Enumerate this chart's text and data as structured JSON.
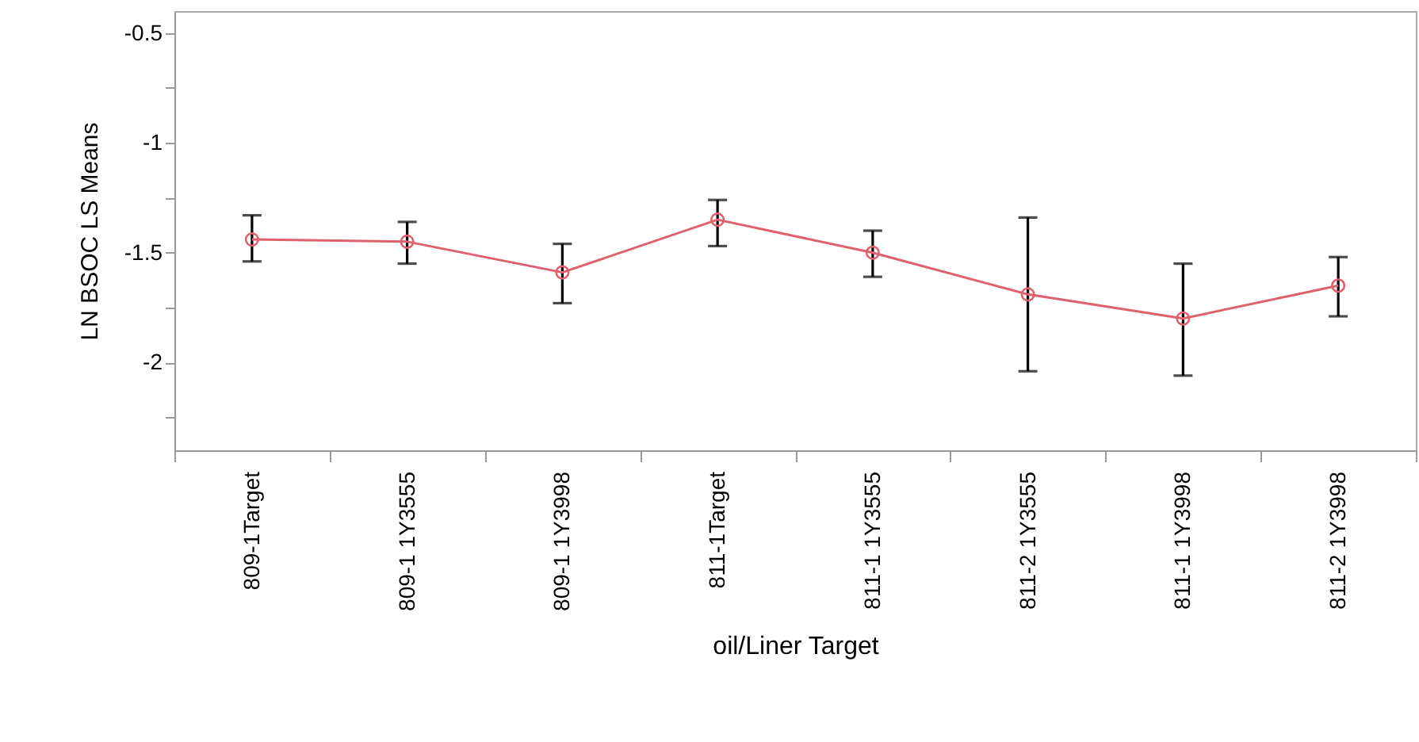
{
  "chart_data": {
    "type": "line",
    "xlabel": "oil/Liner Target",
    "ylabel": "LN BSOC LS Means",
    "categories": [
      "809-1Target",
      "809-1 1Y3555",
      "809-1 1Y3998",
      "811-1Target",
      "811-1 1Y3555",
      "811-2 1Y3555",
      "811-1 1Y3998",
      "811-2 1Y3998"
    ],
    "series": [
      {
        "color": "#e0606e",
        "values": [
          -1.44,
          -1.45,
          -1.59,
          -1.35,
          -1.5,
          -1.69,
          -1.8,
          -1.65
        ],
        "errors": [
          [
            -1.54,
            -1.33
          ],
          [
            -1.55,
            -1.36
          ],
          [
            -1.73,
            -1.46
          ],
          [
            -1.47,
            -1.26
          ],
          [
            -1.61,
            -1.4
          ],
          [
            -2.04,
            -1.34
          ],
          [
            -2.06,
            -1.55
          ],
          [
            -1.79,
            -1.52
          ]
        ]
      }
    ],
    "ylim": [
      -2.4,
      -0.4
    ],
    "yticks": [
      {
        "value": -2.25,
        "label": null
      },
      -2,
      {
        "value": -1.75,
        "label": null
      },
      -1.5,
      {
        "value": -1.25,
        "label": null
      },
      -1,
      {
        "value": -0.75,
        "label": null
      },
      -0.5
    ],
    "marker": "circle",
    "line_style": "solid",
    "grid": false
  }
}
